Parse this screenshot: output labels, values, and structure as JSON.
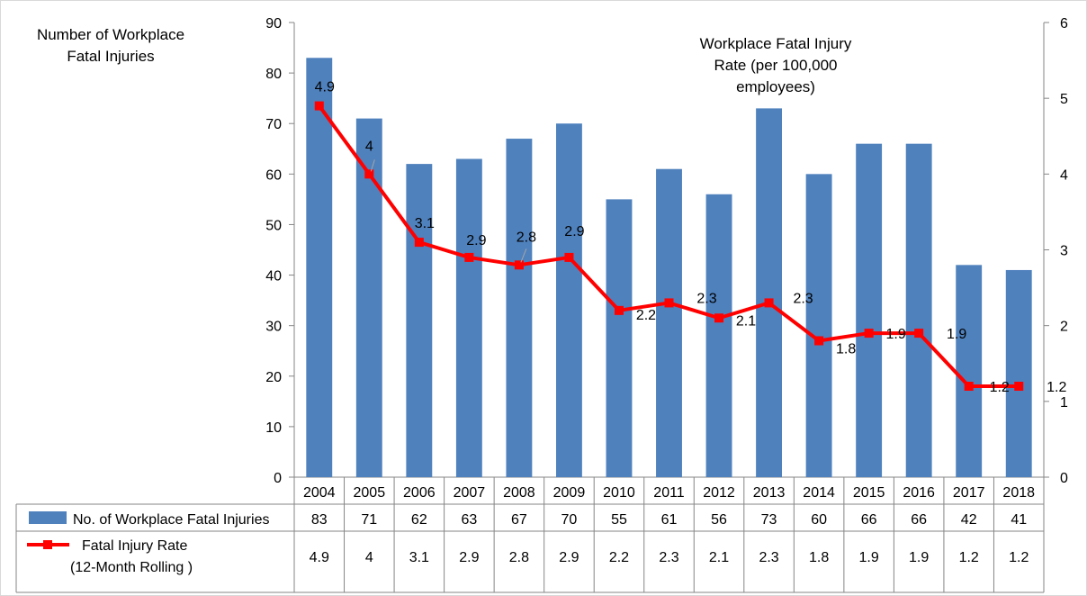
{
  "chart_data": {
    "type": "bar",
    "categories": [
      "2004",
      "2005",
      "2006",
      "2007",
      "2008",
      "2009",
      "2010",
      "2011",
      "2012",
      "2013",
      "2014",
      "2015",
      "2016",
      "2017",
      "2018"
    ],
    "left_axis": {
      "title_lines": [
        "Number of Workplace",
        "Fatal Injuries"
      ],
      "ylim": [
        0,
        90
      ],
      "ticks": [
        0,
        10,
        20,
        30,
        40,
        50,
        60,
        70,
        80,
        90
      ]
    },
    "right_axis": {
      "title_lines": [
        "Workplace Fatal Injury",
        "Rate (per 100,000",
        "employees)"
      ],
      "ylim": [
        0,
        6
      ],
      "ticks": [
        0,
        1,
        2,
        3,
        4,
        5,
        6
      ]
    },
    "series": [
      {
        "name": "No. of Workplace Fatal Injuries",
        "type": "bar",
        "axis": "left",
        "color": "#4f81bd",
        "values": [
          83,
          71,
          62,
          63,
          67,
          70,
          55,
          61,
          56,
          73,
          60,
          66,
          66,
          42,
          41
        ]
      },
      {
        "name_lines": [
          "Fatal Injury Rate",
          "(12-Month Rolling )"
        ],
        "type": "line",
        "axis": "right",
        "color": "#ff0000",
        "values": [
          4.9,
          4,
          3.1,
          2.9,
          2.8,
          2.9,
          2.2,
          2.3,
          2.1,
          2.3,
          1.8,
          1.9,
          1.9,
          1.2,
          1.2
        ]
      }
    ],
    "gridlines": false,
    "legend_placement": "data-table-bottom"
  }
}
